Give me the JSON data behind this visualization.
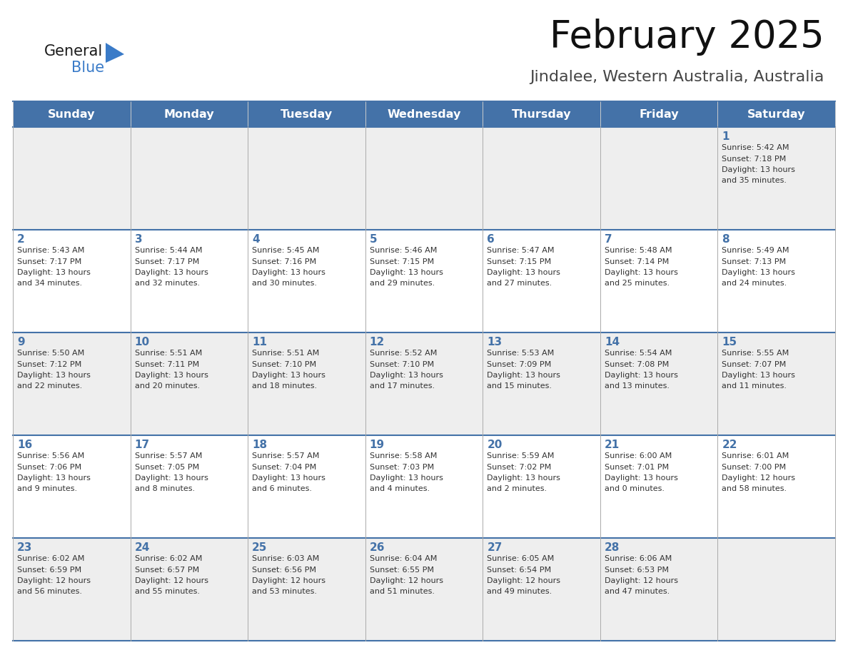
{
  "title": "February 2025",
  "subtitle": "Jindalee, Western Australia, Australia",
  "days_of_week": [
    "Sunday",
    "Monday",
    "Tuesday",
    "Wednesday",
    "Thursday",
    "Friday",
    "Saturday"
  ],
  "header_bg": "#4472a8",
  "header_text": "#ffffff",
  "row1_bg": "#eeeeee",
  "row2_bg": "#ffffff",
  "cell_border": "#4472a8",
  "cell_border_light": "#bbbbbb",
  "day_num_color": "#4472a8",
  "info_color": "#333333",
  "calendar_data": [
    [
      null,
      null,
      null,
      null,
      null,
      null,
      {
        "day": 1,
        "sunrise": "5:42 AM",
        "sunset": "7:18 PM",
        "daylight": "13 hours and 35 minutes."
      }
    ],
    [
      {
        "day": 2,
        "sunrise": "5:43 AM",
        "sunset": "7:17 PM",
        "daylight": "13 hours and 34 minutes."
      },
      {
        "day": 3,
        "sunrise": "5:44 AM",
        "sunset": "7:17 PM",
        "daylight": "13 hours and 32 minutes."
      },
      {
        "day": 4,
        "sunrise": "5:45 AM",
        "sunset": "7:16 PM",
        "daylight": "13 hours and 30 minutes."
      },
      {
        "day": 5,
        "sunrise": "5:46 AM",
        "sunset": "7:15 PM",
        "daylight": "13 hours and 29 minutes."
      },
      {
        "day": 6,
        "sunrise": "5:47 AM",
        "sunset": "7:15 PM",
        "daylight": "13 hours and 27 minutes."
      },
      {
        "day": 7,
        "sunrise": "5:48 AM",
        "sunset": "7:14 PM",
        "daylight": "13 hours and 25 minutes."
      },
      {
        "day": 8,
        "sunrise": "5:49 AM",
        "sunset": "7:13 PM",
        "daylight": "13 hours and 24 minutes."
      }
    ],
    [
      {
        "day": 9,
        "sunrise": "5:50 AM",
        "sunset": "7:12 PM",
        "daylight": "13 hours and 22 minutes."
      },
      {
        "day": 10,
        "sunrise": "5:51 AM",
        "sunset": "7:11 PM",
        "daylight": "13 hours and 20 minutes."
      },
      {
        "day": 11,
        "sunrise": "5:51 AM",
        "sunset": "7:10 PM",
        "daylight": "13 hours and 18 minutes."
      },
      {
        "day": 12,
        "sunrise": "5:52 AM",
        "sunset": "7:10 PM",
        "daylight": "13 hours and 17 minutes."
      },
      {
        "day": 13,
        "sunrise": "5:53 AM",
        "sunset": "7:09 PM",
        "daylight": "13 hours and 15 minutes."
      },
      {
        "day": 14,
        "sunrise": "5:54 AM",
        "sunset": "7:08 PM",
        "daylight": "13 hours and 13 minutes."
      },
      {
        "day": 15,
        "sunrise": "5:55 AM",
        "sunset": "7:07 PM",
        "daylight": "13 hours and 11 minutes."
      }
    ],
    [
      {
        "day": 16,
        "sunrise": "5:56 AM",
        "sunset": "7:06 PM",
        "daylight": "13 hours and 9 minutes."
      },
      {
        "day": 17,
        "sunrise": "5:57 AM",
        "sunset": "7:05 PM",
        "daylight": "13 hours and 8 minutes."
      },
      {
        "day": 18,
        "sunrise": "5:57 AM",
        "sunset": "7:04 PM",
        "daylight": "13 hours and 6 minutes."
      },
      {
        "day": 19,
        "sunrise": "5:58 AM",
        "sunset": "7:03 PM",
        "daylight": "13 hours and 4 minutes."
      },
      {
        "day": 20,
        "sunrise": "5:59 AM",
        "sunset": "7:02 PM",
        "daylight": "13 hours and 2 minutes."
      },
      {
        "day": 21,
        "sunrise": "6:00 AM",
        "sunset": "7:01 PM",
        "daylight": "13 hours and 0 minutes."
      },
      {
        "day": 22,
        "sunrise": "6:01 AM",
        "sunset": "7:00 PM",
        "daylight": "12 hours and 58 minutes."
      }
    ],
    [
      {
        "day": 23,
        "sunrise": "6:02 AM",
        "sunset": "6:59 PM",
        "daylight": "12 hours and 56 minutes."
      },
      {
        "day": 24,
        "sunrise": "6:02 AM",
        "sunset": "6:57 PM",
        "daylight": "12 hours and 55 minutes."
      },
      {
        "day": 25,
        "sunrise": "6:03 AM",
        "sunset": "6:56 PM",
        "daylight": "12 hours and 53 minutes."
      },
      {
        "day": 26,
        "sunrise": "6:04 AM",
        "sunset": "6:55 PM",
        "daylight": "12 hours and 51 minutes."
      },
      {
        "day": 27,
        "sunrise": "6:05 AM",
        "sunset": "6:54 PM",
        "daylight": "12 hours and 49 minutes."
      },
      {
        "day": 28,
        "sunrise": "6:06 AM",
        "sunset": "6:53 PM",
        "daylight": "12 hours and 47 minutes."
      },
      null
    ]
  ]
}
